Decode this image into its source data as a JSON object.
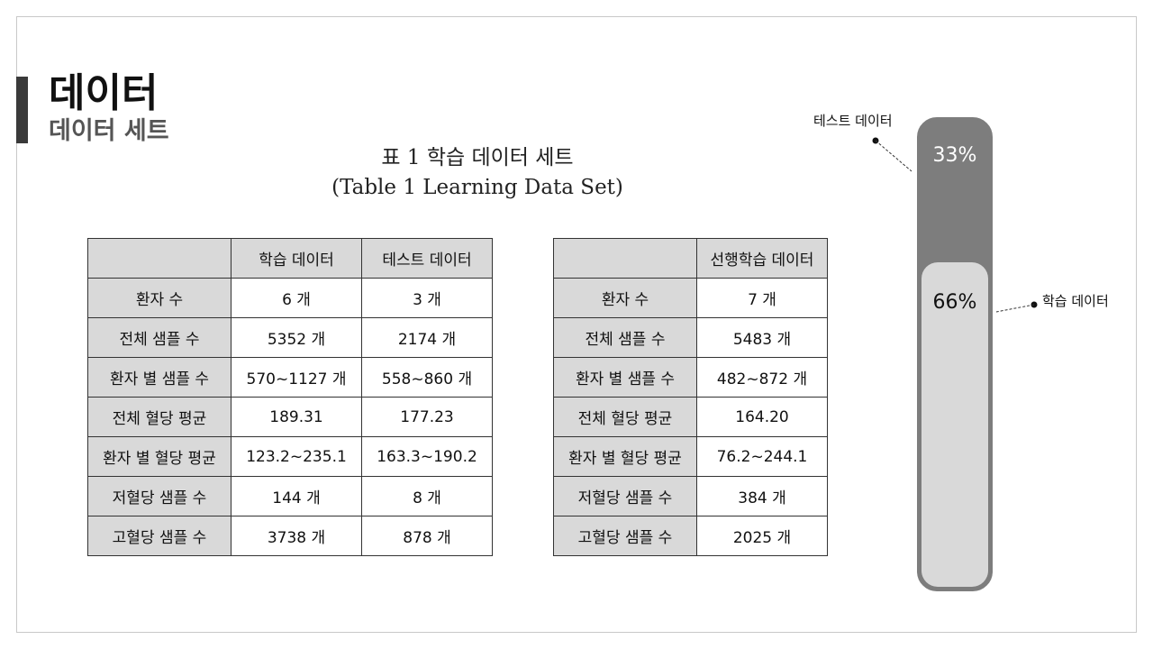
{
  "slide": {
    "title": "데이터",
    "subtitle": "데이터 세트"
  },
  "caption": {
    "line1": "표 1 학습 데이터 세트",
    "line2": "(Table 1 Learning Data Set)"
  },
  "table_left": {
    "headers": [
      "",
      "학습 데이터",
      "테스트 데이터"
    ],
    "rows": [
      [
        "환자 수",
        "6 개",
        "3 개"
      ],
      [
        "전체 샘플 수",
        "5352 개",
        "2174 개"
      ],
      [
        "환자 별 샘플 수",
        "570~1127 개",
        "558~860 개"
      ],
      [
        "전체 혈당 평균",
        "189.31",
        "177.23"
      ],
      [
        "환자 별 혈당 평균",
        "123.2~235.1",
        "163.3~190.2"
      ],
      [
        "저혈당 샘플 수",
        "144 개",
        "8 개"
      ],
      [
        "고혈당 샘플 수",
        "3738 개",
        "878 개"
      ]
    ]
  },
  "table_right": {
    "headers": [
      "",
      "선행학습 데이터"
    ],
    "rows": [
      [
        "환자 수",
        "7 개"
      ],
      [
        "전체 샘플 수",
        "5483 개"
      ],
      [
        "환자 별 샘플 수",
        "482~872 개"
      ],
      [
        "전체 혈당 평균",
        "164.20"
      ],
      [
        "환자 별 혈당 평균",
        "76.2~244.1"
      ],
      [
        "저혈당 샘플 수",
        "384 개"
      ],
      [
        "고혈당 샘플 수",
        "2025 개"
      ]
    ]
  },
  "split_bar": {
    "test_label": "테스트 데이터",
    "test_pct": "33%",
    "train_label": "학습 데이터",
    "train_pct": "66%",
    "train_fraction": 0.66,
    "colors": {
      "test": "#7d7d7d",
      "train": "#d9d9d9"
    }
  }
}
